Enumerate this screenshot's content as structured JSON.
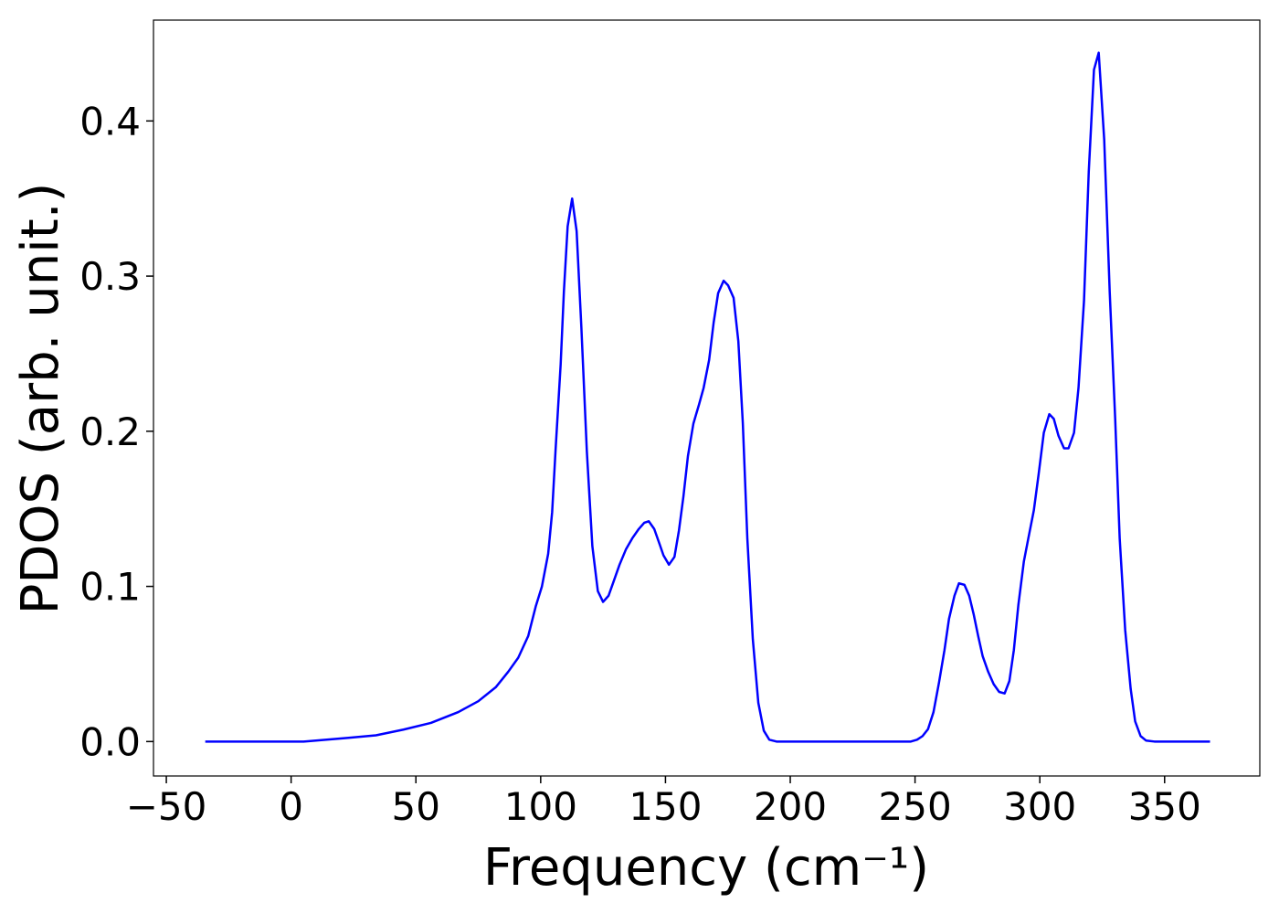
{
  "chart_data": {
    "type": "line",
    "xlabel": "Frequency (cm⁻¹)",
    "ylabel": "PDOS (arb. unit.)",
    "color": "#0000ff",
    "x": [
      -34.4,
      5,
      23,
      34,
      45,
      56,
      67,
      75,
      82,
      87,
      91,
      95,
      98,
      100.5,
      103,
      104.6,
      106,
      108,
      109.3,
      110.8,
      112.6,
      114.4,
      116.3,
      118.5,
      120.7,
      122.9,
      125,
      127.2,
      129.4,
      131.6,
      134.2,
      136.7,
      139.3,
      141.5,
      143.3,
      145.5,
      147.7,
      149.2,
      151.4,
      153.6,
      155.4,
      157.2,
      159,
      161.2,
      163.4,
      165.3,
      167.5,
      169.3,
      171.1,
      173.3,
      175.1,
      177.3,
      179.2,
      181,
      182.8,
      185,
      187.2,
      189.4,
      191.6,
      194.5,
      248.3,
      250.8,
      253,
      255.2,
      257.4,
      259.6,
      261.8,
      263.6,
      265.8,
      267.6,
      269.8,
      271.7,
      273.5,
      275.3,
      277.1,
      279.3,
      281.5,
      283.7,
      285.9,
      287.8,
      289.6,
      291.4,
      293.6,
      295.4,
      297.6,
      299.5,
      301.6,
      303.8,
      305.6,
      307.5,
      309.7,
      311.5,
      313.7,
      315.5,
      317.7,
      319.6,
      321.7,
      323.6,
      325.8,
      328,
      330.2,
      332,
      334.2,
      336.4,
      338.2,
      340.4,
      342.6,
      345.9,
      368.2
    ],
    "values": [
      0,
      0,
      0.0024,
      0.004,
      0.0077,
      0.012,
      0.019,
      0.026,
      0.035,
      0.045,
      0.054,
      0.068,
      0.087,
      0.1,
      0.121,
      0.148,
      0.189,
      0.243,
      0.29,
      0.332,
      0.35,
      0.329,
      0.267,
      0.187,
      0.126,
      0.097,
      0.09,
      0.094,
      0.104,
      0.114,
      0.124,
      0.131,
      0.137,
      0.141,
      0.142,
      0.137,
      0.127,
      0.12,
      0.114,
      0.119,
      0.136,
      0.158,
      0.184,
      0.205,
      0.217,
      0.228,
      0.246,
      0.27,
      0.289,
      0.297,
      0.294,
      0.286,
      0.258,
      0.205,
      0.131,
      0.066,
      0.025,
      0.007,
      0.0012,
      0,
      0,
      0.0012,
      0.0035,
      0.008,
      0.019,
      0.038,
      0.059,
      0.079,
      0.094,
      0.102,
      0.101,
      0.094,
      0.082,
      0.068,
      0.055,
      0.045,
      0.037,
      0.032,
      0.031,
      0.039,
      0.059,
      0.088,
      0.116,
      0.131,
      0.149,
      0.172,
      0.199,
      0.211,
      0.208,
      0.197,
      0.189,
      0.189,
      0.199,
      0.228,
      0.284,
      0.367,
      0.433,
      0.444,
      0.388,
      0.29,
      0.208,
      0.131,
      0.072,
      0.034,
      0.013,
      0.0035,
      0.0006,
      0,
      0
    ],
    "xlim": [
      -55.15,
      388.15
    ],
    "xticks": [
      {
        "value": -50,
        "label": "−50"
      },
      0,
      50,
      100,
      150,
      200,
      250,
      300,
      350
    ],
    "ylim": [
      -0.0222,
      0.465
    ],
    "yticks": [
      {
        "value": 0,
        "label": "0.0"
      },
      0.1,
      0.2,
      0.3,
      0.4
    ],
    "grid": false
  }
}
